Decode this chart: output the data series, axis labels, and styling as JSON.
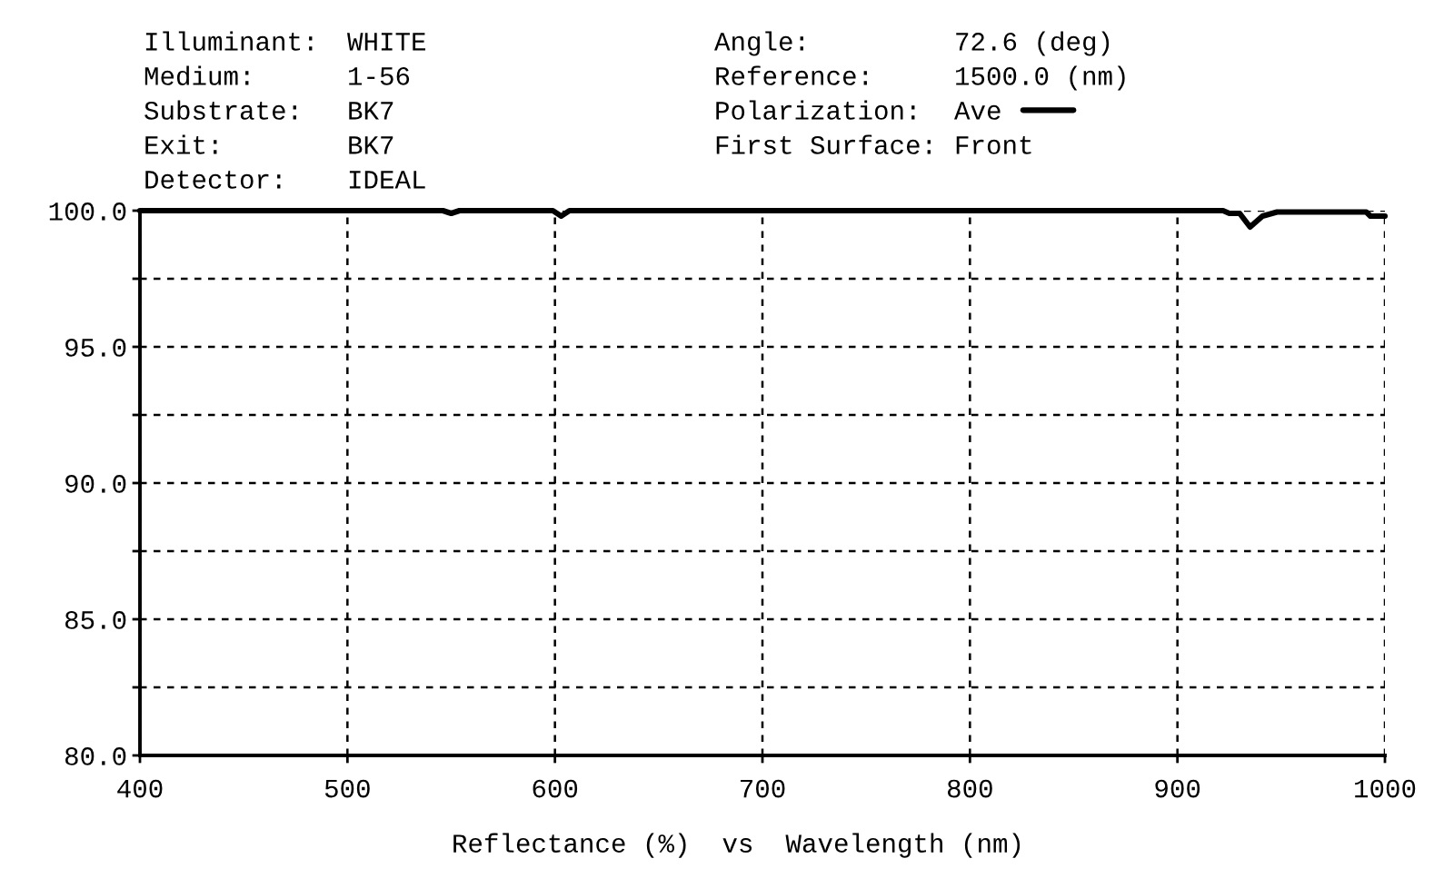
{
  "chart_data": {
    "type": "line",
    "annotations": [
      "Illuminant:",
      "WHITE",
      "Medium:",
      "1-56",
      "Substrate:",
      "BK7",
      "Exit:",
      "BK7",
      "Detector:",
      "IDEAL",
      "Angle:",
      "72.6 (deg)",
      "Reference:",
      "1500.0 (nm)",
      "First Surface:",
      "Front"
    ],
    "legend_title": "Polarization:",
    "xlabel": "Reflectance (%)  vs  Wavelength (nm)",
    "series": [
      {
        "name": "Ave",
        "color": "#000000",
        "x": [
          400,
          546,
          550,
          554,
          599,
          603,
          607,
          922,
          925,
          930,
          935,
          941,
          948,
          991,
          993,
          1000
        ],
        "values": [
          100,
          100,
          99.9,
          100,
          100,
          99.8,
          100,
          100,
          99.9,
          99.9,
          99.4,
          99.8,
          99.95,
          99.95,
          99.8,
          99.8
        ]
      }
    ],
    "xlim": [
      400,
      1000
    ],
    "xticks": [
      400,
      500,
      600,
      700,
      800,
      900,
      1000
    ],
    "ylim": [
      80,
      100
    ],
    "yticks": [
      {
        "value": 80,
        "label": "80.0"
      },
      {
        "value": 82.5,
        "label": null
      },
      {
        "value": 85,
        "label": "85.0"
      },
      {
        "value": 87.5,
        "label": null
      },
      {
        "value": 90,
        "label": "90.0"
      },
      {
        "value": 92.5,
        "label": null
      },
      {
        "value": 95,
        "label": "95.0"
      },
      {
        "value": 97.5,
        "label": null
      },
      {
        "value": 100,
        "label": "100.0"
      }
    ],
    "grid": true,
    "legend": "top right"
  }
}
